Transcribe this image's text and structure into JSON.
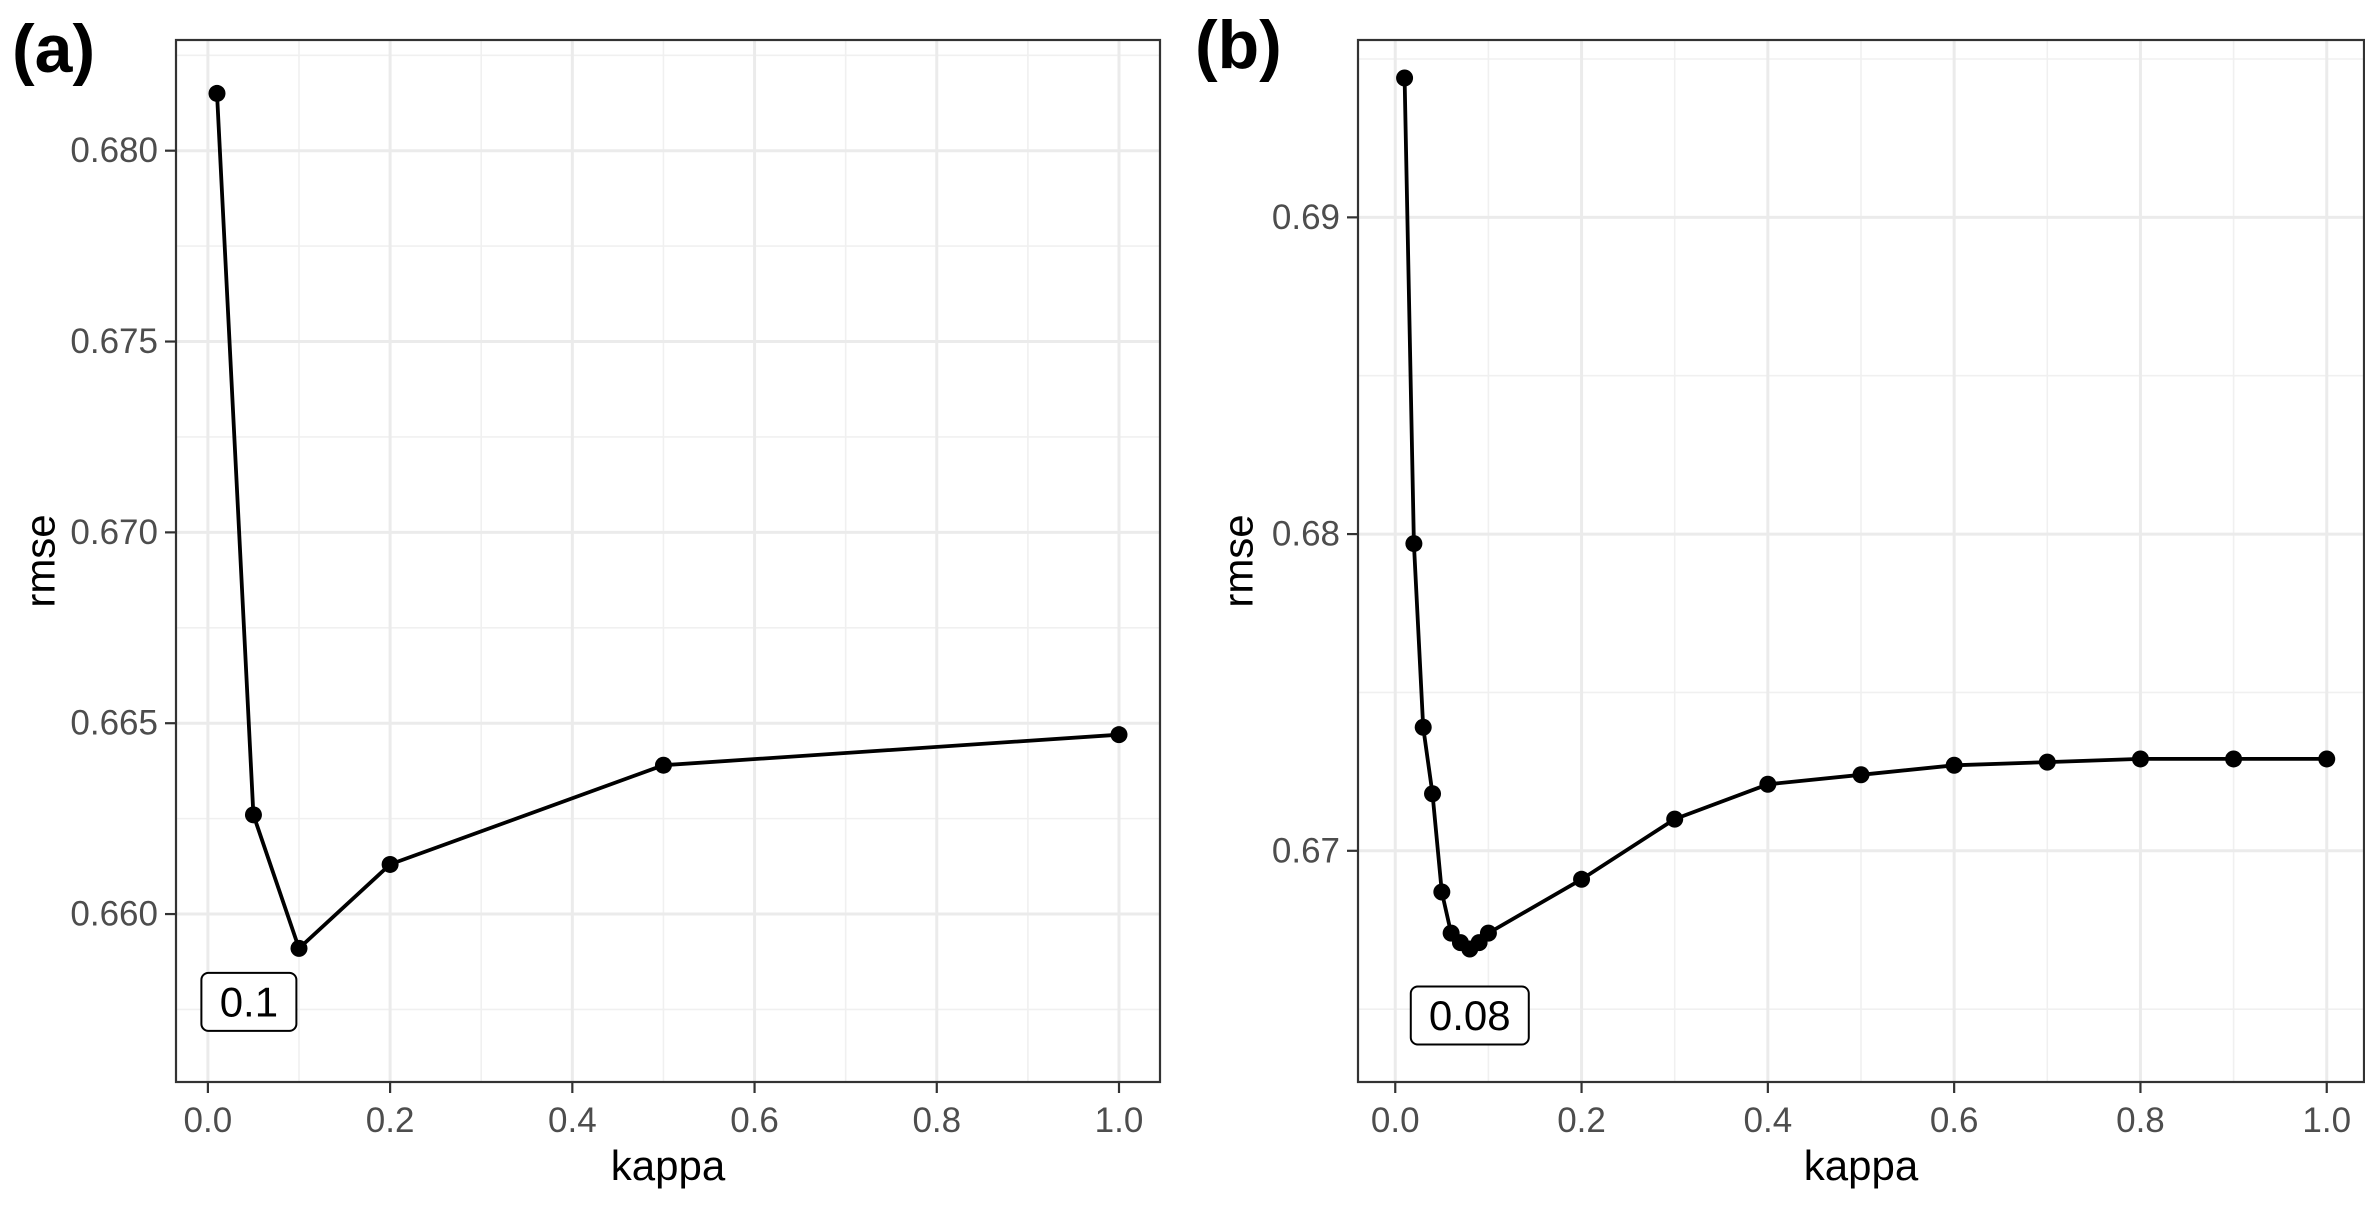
{
  "chart_data": [
    {
      "type": "line",
      "panel_label": "(a)",
      "xlabel": "kappa",
      "ylabel": "rmse",
      "xlim": [
        -0.035,
        1.045
      ],
      "ylim": [
        0.6556,
        0.6829
      ],
      "x_ticks": [
        0.0,
        0.2,
        0.4,
        0.6,
        0.8,
        1.0
      ],
      "x_tick_labels": [
        "0.0",
        "0.2",
        "0.4",
        "0.6",
        "0.8",
        "1.0"
      ],
      "y_ticks": [
        0.66,
        0.665,
        0.67,
        0.675,
        0.68
      ],
      "y_tick_labels": [
        "0.660",
        "0.665",
        "0.670",
        "0.675",
        "0.680"
      ],
      "grid": true,
      "series": [
        {
          "x": [
            0.01,
            0.05,
            0.1,
            0.2,
            0.5,
            1.0
          ],
          "y": [
            0.6815,
            0.6626,
            0.6591,
            0.6613,
            0.6639,
            0.6647
          ]
        }
      ],
      "annotation": {
        "text": "0.1",
        "x": 0.045,
        "y": 0.6577
      }
    },
    {
      "type": "line",
      "panel_label": "(b)",
      "xlabel": "kappa",
      "ylabel": "rmse",
      "xlim": [
        -0.04,
        1.04
      ],
      "ylim": [
        0.6627,
        0.6956
      ],
      "x_ticks": [
        0.0,
        0.2,
        0.4,
        0.6,
        0.8,
        1.0
      ],
      "x_tick_labels": [
        "0.0",
        "0.2",
        "0.4",
        "0.6",
        "0.8",
        "1.0"
      ],
      "y_ticks": [
        0.67,
        0.68,
        0.69
      ],
      "y_tick_labels": [
        "0.67",
        "0.68",
        "0.69"
      ],
      "grid": true,
      "series": [
        {
          "x": [
            0.01,
            0.02,
            0.03,
            0.04,
            0.05,
            0.06,
            0.07,
            0.08,
            0.09,
            0.1,
            0.2,
            0.3,
            0.4,
            0.5,
            0.6,
            0.7,
            0.8,
            0.9,
            1.0
          ],
          "y": [
            0.6944,
            0.6797,
            0.6739,
            0.6718,
            0.6687,
            0.6674,
            0.6671,
            0.6669,
            0.6671,
            0.6674,
            0.6691,
            0.671,
            0.6721,
            0.6724,
            0.6727,
            0.6728,
            0.6729,
            0.6729,
            0.6729
          ]
        }
      ],
      "annotation": {
        "text": "0.08",
        "x": 0.08,
        "y": 0.6648
      }
    }
  ]
}
